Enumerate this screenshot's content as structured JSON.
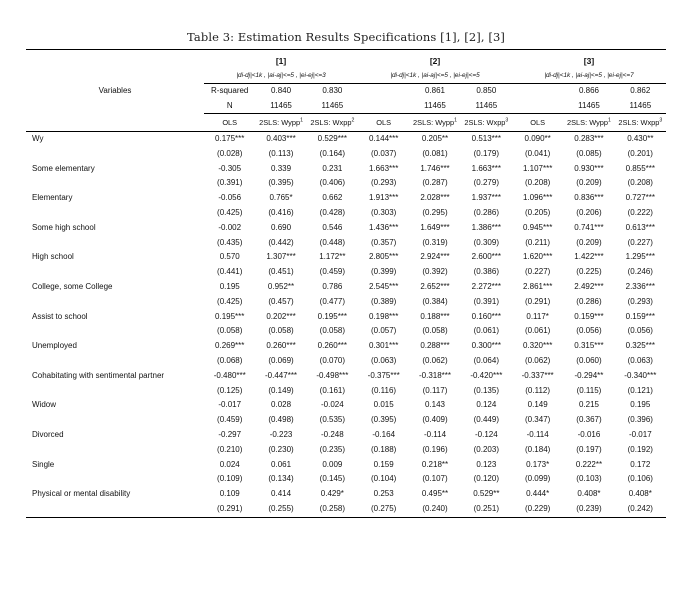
{
  "page": {
    "title": "Table 3: Estimation Results Specifications [1], [2], [3]"
  },
  "table": {
    "variables_header": "Variables",
    "groups": [
      {
        "label": "[1]",
        "spec": "|di-dj|<1k , |ai-aj|<=5 , |ei-ej|<=3"
      },
      {
        "label": "[2]",
        "spec": "|di-dj|<1k , |ai-aj|<=5 , |ei-ej|<=5"
      },
      {
        "label": "[3]",
        "spec": "|di-dj|<1k , |ai-aj|<=5 , |ei-ej|<=7"
      }
    ],
    "stats_rows": [
      {
        "variable": "Variables",
        "name": "r-squared-row",
        "cells": [
          "R-squared",
          "0.840",
          "0.830",
          "",
          "0.861",
          "0.850",
          "",
          "0.866",
          "0.862"
        ]
      },
      {
        "variable": "",
        "name": "n-row",
        "cells": [
          "N",
          "11465",
          "11465",
          "",
          "11465",
          "11465",
          "",
          "11465",
          "11465"
        ]
      }
    ],
    "estimators": [
      {
        "label": "OLS",
        "sup": ""
      },
      {
        "label": "2SLS: Wypp",
        "sup": "1"
      },
      {
        "label": "2SLS: Wxpp",
        "sup": "2"
      },
      {
        "label": "OLS",
        "sup": ""
      },
      {
        "label": "2SLS: Wypp",
        "sup": "1"
      },
      {
        "label": "2SLS: Wxpp",
        "sup": "3"
      },
      {
        "label": "OLS",
        "sup": ""
      },
      {
        "label": "2SLS: Wypp",
        "sup": "1"
      },
      {
        "label": "2SLS: Wxpp",
        "sup": "3"
      }
    ],
    "rows": [
      {
        "variable": "Wy",
        "coef": [
          "0.175***",
          "0.403***",
          "0.529***",
          "0.144***",
          "0.205**",
          "0.513***",
          "0.090**",
          "0.283***",
          "0.430**"
        ],
        "se": [
          "(0.028)",
          "(0.113)",
          "(0.164)",
          "(0.037)",
          "(0.081)",
          "(0.179)",
          "(0.041)",
          "(0.085)",
          "(0.201)"
        ]
      },
      {
        "variable": "Some elementary",
        "coef": [
          "-0.305",
          "0.339",
          "0.231",
          "1.663***",
          "1.746***",
          "1.663***",
          "1.107***",
          "0.930***",
          "0.855***"
        ],
        "se": [
          "(0.391)",
          "(0.395)",
          "(0.406)",
          "(0.293)",
          "(0.287)",
          "(0.279)",
          "(0.208)",
          "(0.209)",
          "(0.208)"
        ]
      },
      {
        "variable": "Elementary",
        "coef": [
          "-0.056",
          "0.765*",
          "0.662",
          "1.913***",
          "2.028***",
          "1.937***",
          "1.096***",
          "0.836***",
          "0.727***"
        ],
        "se": [
          "(0.425)",
          "(0.416)",
          "(0.428)",
          "(0.303)",
          "(0.295)",
          "(0.286)",
          "(0.205)",
          "(0.206)",
          "(0.222)"
        ]
      },
      {
        "variable": "Some high school",
        "coef": [
          "-0.002",
          "0.690",
          "0.546",
          "1.436***",
          "1.649***",
          "1.386***",
          "0.945***",
          "0.741***",
          "0.613***"
        ],
        "se": [
          "(0.435)",
          "(0.442)",
          "(0.448)",
          "(0.357)",
          "(0.319)",
          "(0.309)",
          "(0.211)",
          "(0.209)",
          "(0.227)"
        ]
      },
      {
        "variable": "High school",
        "coef": [
          "0.570",
          "1.307***",
          "1.172**",
          "2.805***",
          "2.924***",
          "2.600***",
          "1.620***",
          "1.422***",
          "1.295***"
        ],
        "se": [
          "(0.441)",
          "(0.451)",
          "(0.459)",
          "(0.399)",
          "(0.392)",
          "(0.386)",
          "(0.227)",
          "(0.225)",
          "(0.246)"
        ]
      },
      {
        "variable": "College, some College",
        "coef": [
          "0.195",
          "0.952**",
          "0.786",
          "2.545***",
          "2.652***",
          "2.272***",
          "2.861***",
          "2.492***",
          "2.336***"
        ],
        "se": [
          "(0.425)",
          "(0.457)",
          "(0.477)",
          "(0.389)",
          "(0.384)",
          "(0.391)",
          "(0.291)",
          "(0.286)",
          "(0.293)"
        ]
      },
      {
        "variable": "Assist to school",
        "coef": [
          "0.195***",
          "0.202***",
          "0.195***",
          "0.198***",
          "0.188***",
          "0.160***",
          "0.117*",
          "0.159***",
          "0.159***"
        ],
        "se": [
          "(0.058)",
          "(0.058)",
          "(0.058)",
          "(0.057)",
          "(0.058)",
          "(0.061)",
          "(0.061)",
          "(0.056)",
          "(0.056)"
        ]
      },
      {
        "variable": "Unemployed",
        "coef": [
          "0.269***",
          "0.260***",
          "0.260***",
          "0.301***",
          "0.288***",
          "0.300***",
          "0.320***",
          "0.315***",
          "0.325***"
        ],
        "se": [
          "(0.068)",
          "(0.069)",
          "(0.070)",
          "(0.063)",
          "(0.062)",
          "(0.064)",
          "(0.062)",
          "(0.060)",
          "(0.063)"
        ]
      },
      {
        "variable": "Cohabitating with sentimental partner",
        "coef": [
          "-0.480***",
          "-0.447***",
          "-0.498***",
          "-0.375***",
          "-0.318***",
          "-0.420***",
          "-0.337***",
          "-0.294**",
          "-0.340***"
        ],
        "se": [
          "(0.125)",
          "(0.149)",
          "(0.161)",
          "(0.116)",
          "(0.117)",
          "(0.135)",
          "(0.112)",
          "(0.115)",
          "(0.121)"
        ]
      },
      {
        "variable": "Widow",
        "coef": [
          "-0.017",
          "0.028",
          "-0.024",
          "0.015",
          "0.143",
          "0.124",
          "0.149",
          "0.215",
          "0.195"
        ],
        "se": [
          "(0.459)",
          "(0.498)",
          "(0.535)",
          "(0.395)",
          "(0.409)",
          "(0.449)",
          "(0.347)",
          "(0.367)",
          "(0.396)"
        ]
      },
      {
        "variable": "Divorced",
        "coef": [
          "-0.297",
          "-0.223",
          "-0.248",
          "-0.164",
          "-0.114",
          "-0.124",
          "-0.114",
          "-0.016",
          "-0.017"
        ],
        "se": [
          "(0.210)",
          "(0.230)",
          "(0.235)",
          "(0.188)",
          "(0.196)",
          "(0.203)",
          "(0.184)",
          "(0.197)",
          "(0.192)"
        ]
      },
      {
        "variable": "Single",
        "coef": [
          "0.024",
          "0.061",
          "0.009",
          "0.159",
          "0.218**",
          "0.123",
          "0.173*",
          "0.222**",
          "0.172"
        ],
        "se": [
          "(0.109)",
          "(0.134)",
          "(0.145)",
          "(0.104)",
          "(0.107)",
          "(0.120)",
          "(0.099)",
          "(0.103)",
          "(0.106)"
        ]
      },
      {
        "variable": "Physical or mental disability",
        "coef": [
          "0.109",
          "0.414",
          "0.429*",
          "0.253",
          "0.495**",
          "0.529**",
          "0.444*",
          "0.408*",
          "0.408*"
        ],
        "se": [
          "(0.291)",
          "(0.255)",
          "(0.258)",
          "(0.275)",
          "(0.240)",
          "(0.251)",
          "(0.229)",
          "(0.239)",
          "(0.242)"
        ]
      }
    ]
  }
}
